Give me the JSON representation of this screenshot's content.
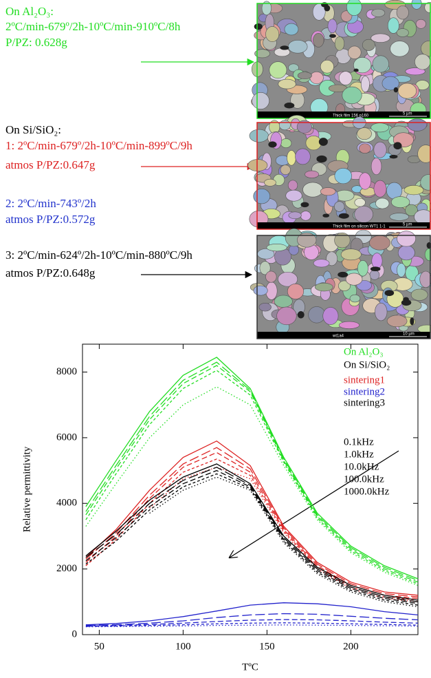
{
  "panel": {
    "blocks": [
      {
        "color": "#22dd22",
        "lines": [
          "On Al₂O₃:",
          "2ºC/min-679º/2h-10ºC/min-910ºC/8h",
          "P/PZ: 0.628g"
        ]
      },
      {
        "color": "#dd2222",
        "lines": [
          "On Si/SiO₂:",
          "1: 2ºC/min-679º/2h-10ºC/min-899ºC/9h",
          "atmos P/PZ:0.647g"
        ]
      },
      {
        "color": "#2233cc",
        "lines": [
          "2: 2ºC/min-743º/2h",
          "atmos P/PZ:0.572g"
        ]
      },
      {
        "color": "#000000",
        "lines": [
          "3: 2ºC/min-624º/2h-10ºC/min-880ºC/9h",
          "atmos P/PZ:0.648g"
        ]
      }
    ],
    "images": [
      {
        "scale": "5 µm",
        "caption": "Thick film 156 p160",
        "border": "#22dd22"
      },
      {
        "scale": "5 µm",
        "caption": "Thick film on silicon WT1 1-1",
        "border": "#dd2222"
      },
      {
        "scale": "10 µm",
        "caption": "wt1a4",
        "border": "#333333"
      }
    ]
  },
  "chart_data": {
    "type": "line",
    "xlabel": "TºC",
    "ylabel": "Relative permittivity",
    "x": [
      42,
      60,
      80,
      100,
      120,
      140,
      160,
      180,
      200,
      220,
      240
    ],
    "xlim": [
      40,
      240
    ],
    "xticks": [
      50,
      100,
      150,
      200
    ],
    "ylim": [
      0,
      8850
    ],
    "yticks": [
      0,
      2000,
      4000,
      6000,
      8000
    ],
    "legend_heading": "On Si/SiO₂",
    "frequencies": [
      "0.1kHz",
      "1.0kHz",
      "10.0kHz",
      "100.0kHz",
      "1000.0kHz"
    ],
    "groups": [
      {
        "name": "On Al₂O₃",
        "color": "#22dd22",
        "series": [
          {
            "values": [
              3900,
              5300,
              6800,
              7900,
              8450,
              7500,
              5400,
              3700,
              2700,
              2100,
              1700
            ]
          },
          {
            "values": [
              3750,
              5150,
              6650,
              7750,
              8300,
              7450,
              5350,
              3650,
              2650,
              2050,
              1650
            ]
          },
          {
            "values": [
              3650,
              5050,
              6550,
              7650,
              8200,
              7400,
              5300,
              3600,
              2600,
              2000,
              1600
            ]
          },
          {
            "values": [
              3500,
              4900,
              6400,
              7500,
              8050,
              7300,
              5250,
              3550,
              2550,
              1950,
              1550
            ]
          },
          {
            "values": [
              3300,
              4600,
              6000,
              7000,
              7550,
              7000,
              5150,
              3500,
              2500,
              1900,
              1500
            ]
          }
        ]
      },
      {
        "name": "sintering1",
        "color": "#dd2222",
        "series": [
          {
            "values": [
              2350,
              3200,
              4400,
              5400,
              5900,
              5150,
              3300,
              2200,
              1600,
              1300,
              1200
            ]
          },
          {
            "values": [
              2300,
              3100,
              4250,
              5200,
              5700,
              5050,
              3250,
              2150,
              1550,
              1250,
              1150
            ]
          },
          {
            "values": [
              2200,
              3000,
              4150,
              5100,
              5550,
              4950,
              3200,
              2100,
              1500,
              1200,
              1100
            ]
          },
          {
            "values": [
              2100,
              2900,
              4000,
              4950,
              5350,
              4850,
              3150,
              2050,
              1450,
              1150,
              1050
            ]
          },
          {
            "values": [
              null,
              null,
              3850,
              4750,
              5100,
              4750,
              3100,
              2000,
              1400,
              1100,
              1000
            ]
          }
        ]
      },
      {
        "name": "sintering2",
        "color": "#2222cc",
        "series": [
          {
            "values": [
              300,
              340,
              420,
              550,
              720,
              900,
              970,
              940,
              850,
              700,
              600
            ]
          },
          {
            "values": [
              280,
              300,
              350,
              420,
              520,
              600,
              640,
              620,
              560,
              500,
              450
            ]
          },
          {
            "values": [
              260,
              280,
              310,
              350,
              400,
              440,
              460,
              450,
              420,
              380,
              350
            ]
          },
          {
            "values": [
              250,
              260,
              280,
              300,
              330,
              350,
              360,
              350,
              330,
              310,
              290
            ]
          },
          {
            "values": [
              240,
              245,
              255,
              265,
              280,
              290,
              295,
              290,
              280,
              270,
              260
            ]
          }
        ]
      },
      {
        "name": "sintering3",
        "color": "#000000",
        "series": [
          {
            "values": [
              2400,
              3150,
              4100,
              4800,
              5200,
              4600,
              3000,
              2050,
              1500,
              1200,
              1050
            ]
          },
          {
            "values": [
              2350,
              3050,
              4000,
              4700,
              5100,
              4550,
              2950,
              2000,
              1450,
              1150,
              1000
            ]
          },
          {
            "values": [
              2250,
              2950,
              3900,
              4600,
              5000,
              4500,
              2900,
              1950,
              1400,
              1100,
              950
            ]
          },
          {
            "values": [
              2150,
              2850,
              3800,
              4500,
              4900,
              4450,
              2850,
              1900,
              1350,
              1050,
              900
            ]
          },
          {
            "values": [
              null,
              null,
              3700,
              4400,
              4800,
              4400,
              2800,
              1850,
              1300,
              1000,
              850
            ]
          }
        ]
      }
    ]
  }
}
